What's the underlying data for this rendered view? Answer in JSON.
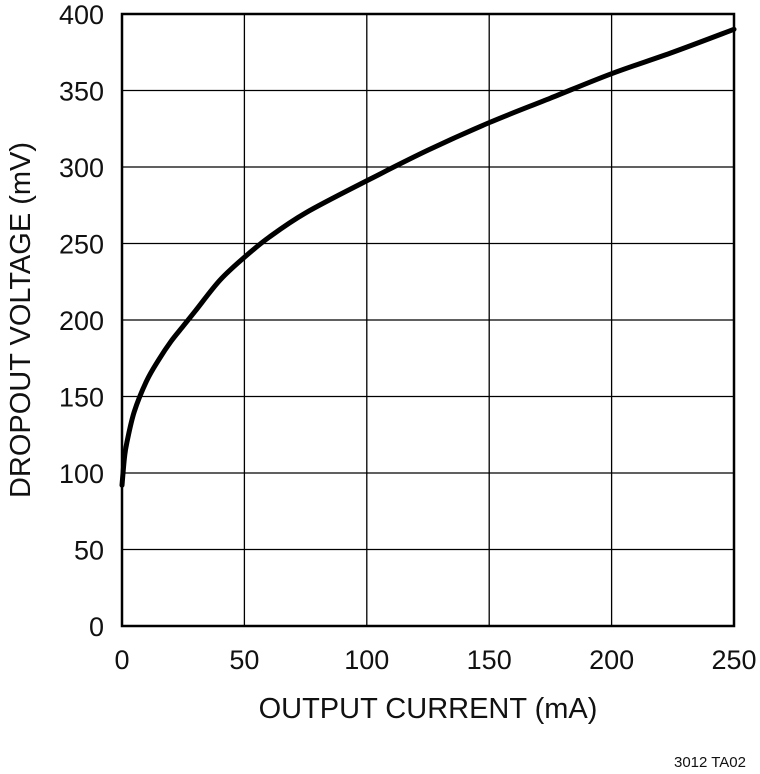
{
  "chart_data": {
    "type": "line",
    "title": "",
    "xlabel": "OUTPUT CURRENT (mA)",
    "ylabel": "DROPOUT VOLTAGE (mV)",
    "xlim": [
      0,
      250
    ],
    "ylim": [
      0,
      400
    ],
    "x_ticks": [
      0,
      50,
      100,
      150,
      200,
      250
    ],
    "y_ticks": [
      0,
      50,
      100,
      150,
      200,
      250,
      300,
      350,
      400
    ],
    "grid": true,
    "legend": "none",
    "series": [
      {
        "color": "#000000",
        "x": [
          0,
          1,
          2,
          5,
          10,
          15,
          20,
          25,
          30,
          40,
          50,
          60,
          75,
          100,
          125,
          150,
          175,
          200,
          225,
          250
        ],
        "y": [
          92,
          110,
          120,
          140,
          160,
          174,
          186,
          196,
          206,
          226,
          241,
          254,
          270,
          291,
          311,
          329,
          345,
          361,
          375,
          390
        ]
      }
    ]
  },
  "footnote": "3012 TA02"
}
